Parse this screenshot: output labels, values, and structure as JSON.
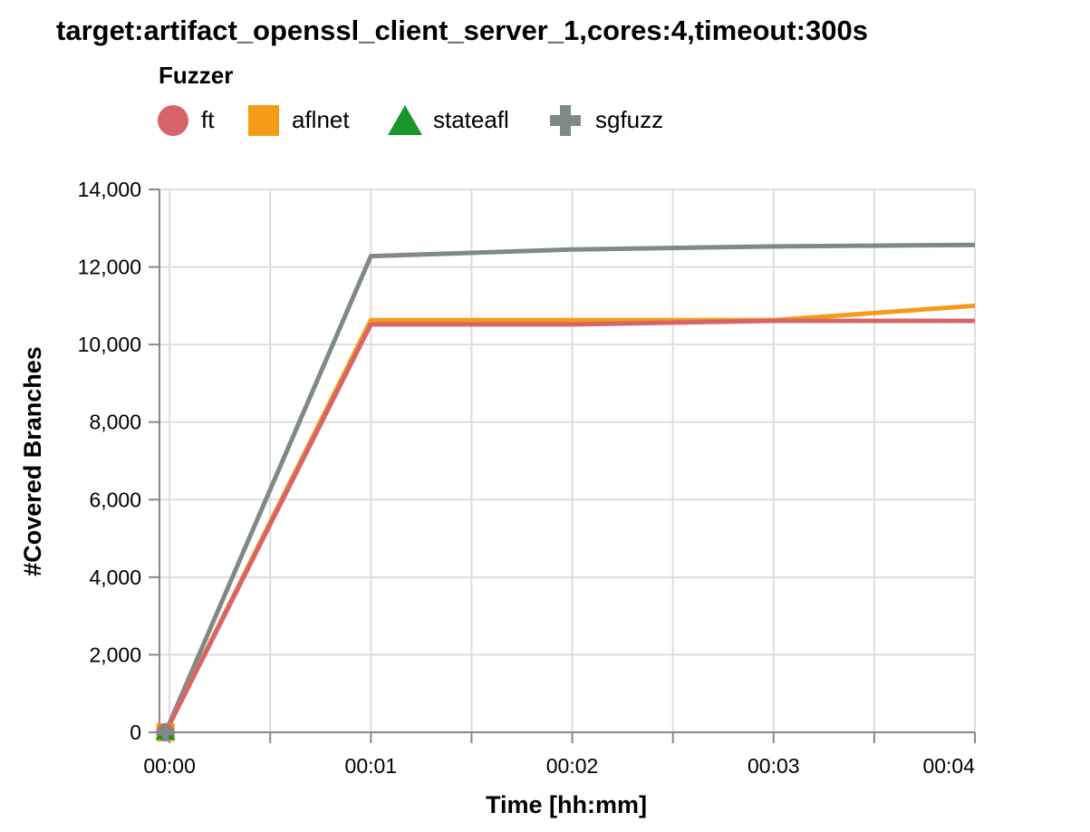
{
  "colors": {
    "ft": "#d8646a",
    "aflnet": "#f59c16",
    "stateafl": "#18962c",
    "sgfuzz": "#7f8a85"
  },
  "chart_data": {
    "type": "line",
    "title": "target:artifact_openssl_client_server_1,cores:4,timeout:300s",
    "legend": {
      "title": "Fuzzer",
      "placement": "top-left",
      "entries": [
        {
          "name": "ft",
          "symbol": "circle"
        },
        {
          "name": "aflnet",
          "symbol": "square"
        },
        {
          "name": "stateafl",
          "symbol": "triangle"
        },
        {
          "name": "sgfuzz",
          "symbol": "cross"
        }
      ]
    },
    "xlabel": "Time [hh:mm]",
    "ylabel": "#Covered Branches",
    "xlim": [
      -0.05,
      4
    ],
    "ylim": [
      0,
      14000
    ],
    "x_ticks": [
      0,
      1,
      2,
      3,
      4
    ],
    "x_tick_labels": [
      "00:00",
      "00:01",
      "00:02",
      "00:03",
      "00:04"
    ],
    "y_ticks": [
      0,
      2000,
      4000,
      6000,
      8000,
      10000,
      12000,
      14000
    ],
    "y_tick_labels": [
      "0",
      "2,000",
      "4,000",
      "6,000",
      "8,000",
      "10,000",
      "12,000",
      "14,000"
    ],
    "grid": true,
    "series": [
      {
        "name": "sgfuzz",
        "x": [
          -0.02,
          1,
          2,
          3,
          4
        ],
        "y": [
          0,
          12280,
          12450,
          12530,
          12570
        ]
      },
      {
        "name": "aflnet",
        "x": [
          -0.02,
          1,
          2,
          3,
          4
        ],
        "y": [
          0,
          10630,
          10630,
          10630,
          11000
        ]
      },
      {
        "name": "ft",
        "x": [
          -0.02,
          1,
          2,
          3,
          4
        ],
        "y": [
          0,
          10520,
          10520,
          10610,
          10610
        ]
      },
      {
        "name": "stateafl",
        "x": [
          -0.02
        ],
        "y": [
          0
        ]
      }
    ]
  }
}
